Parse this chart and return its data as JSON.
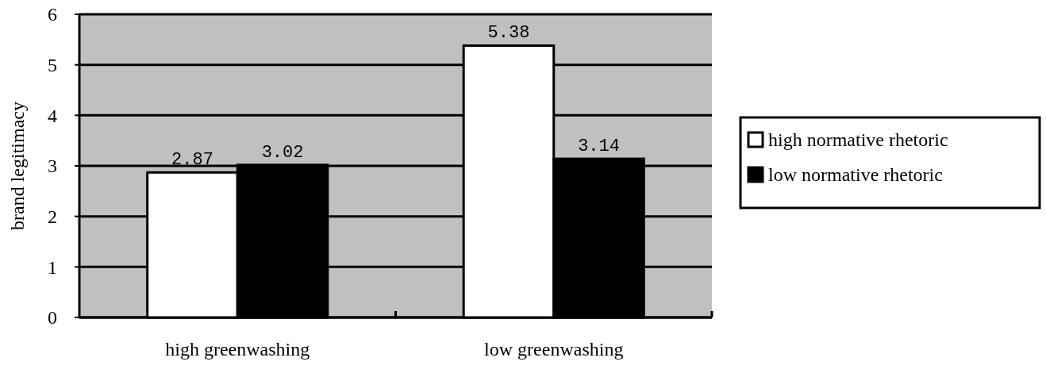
{
  "chart_data": {
    "type": "bar",
    "ylabel": "brand legitimacy",
    "categories": [
      "high greenwashing",
      "low greenwashing"
    ],
    "series": [
      {
        "name": "high normative rhetoric",
        "color": "#ffffff",
        "values": [
          2.87,
          5.38
        ]
      },
      {
        "name": "low normative rhetoric",
        "color": "#000000",
        "values": [
          3.02,
          3.14
        ]
      }
    ],
    "ylim": [
      0,
      6
    ],
    "yticks": [
      0,
      1,
      2,
      3,
      4,
      5,
      6
    ],
    "grid": "y",
    "legend": "right",
    "data_labels": true
  }
}
